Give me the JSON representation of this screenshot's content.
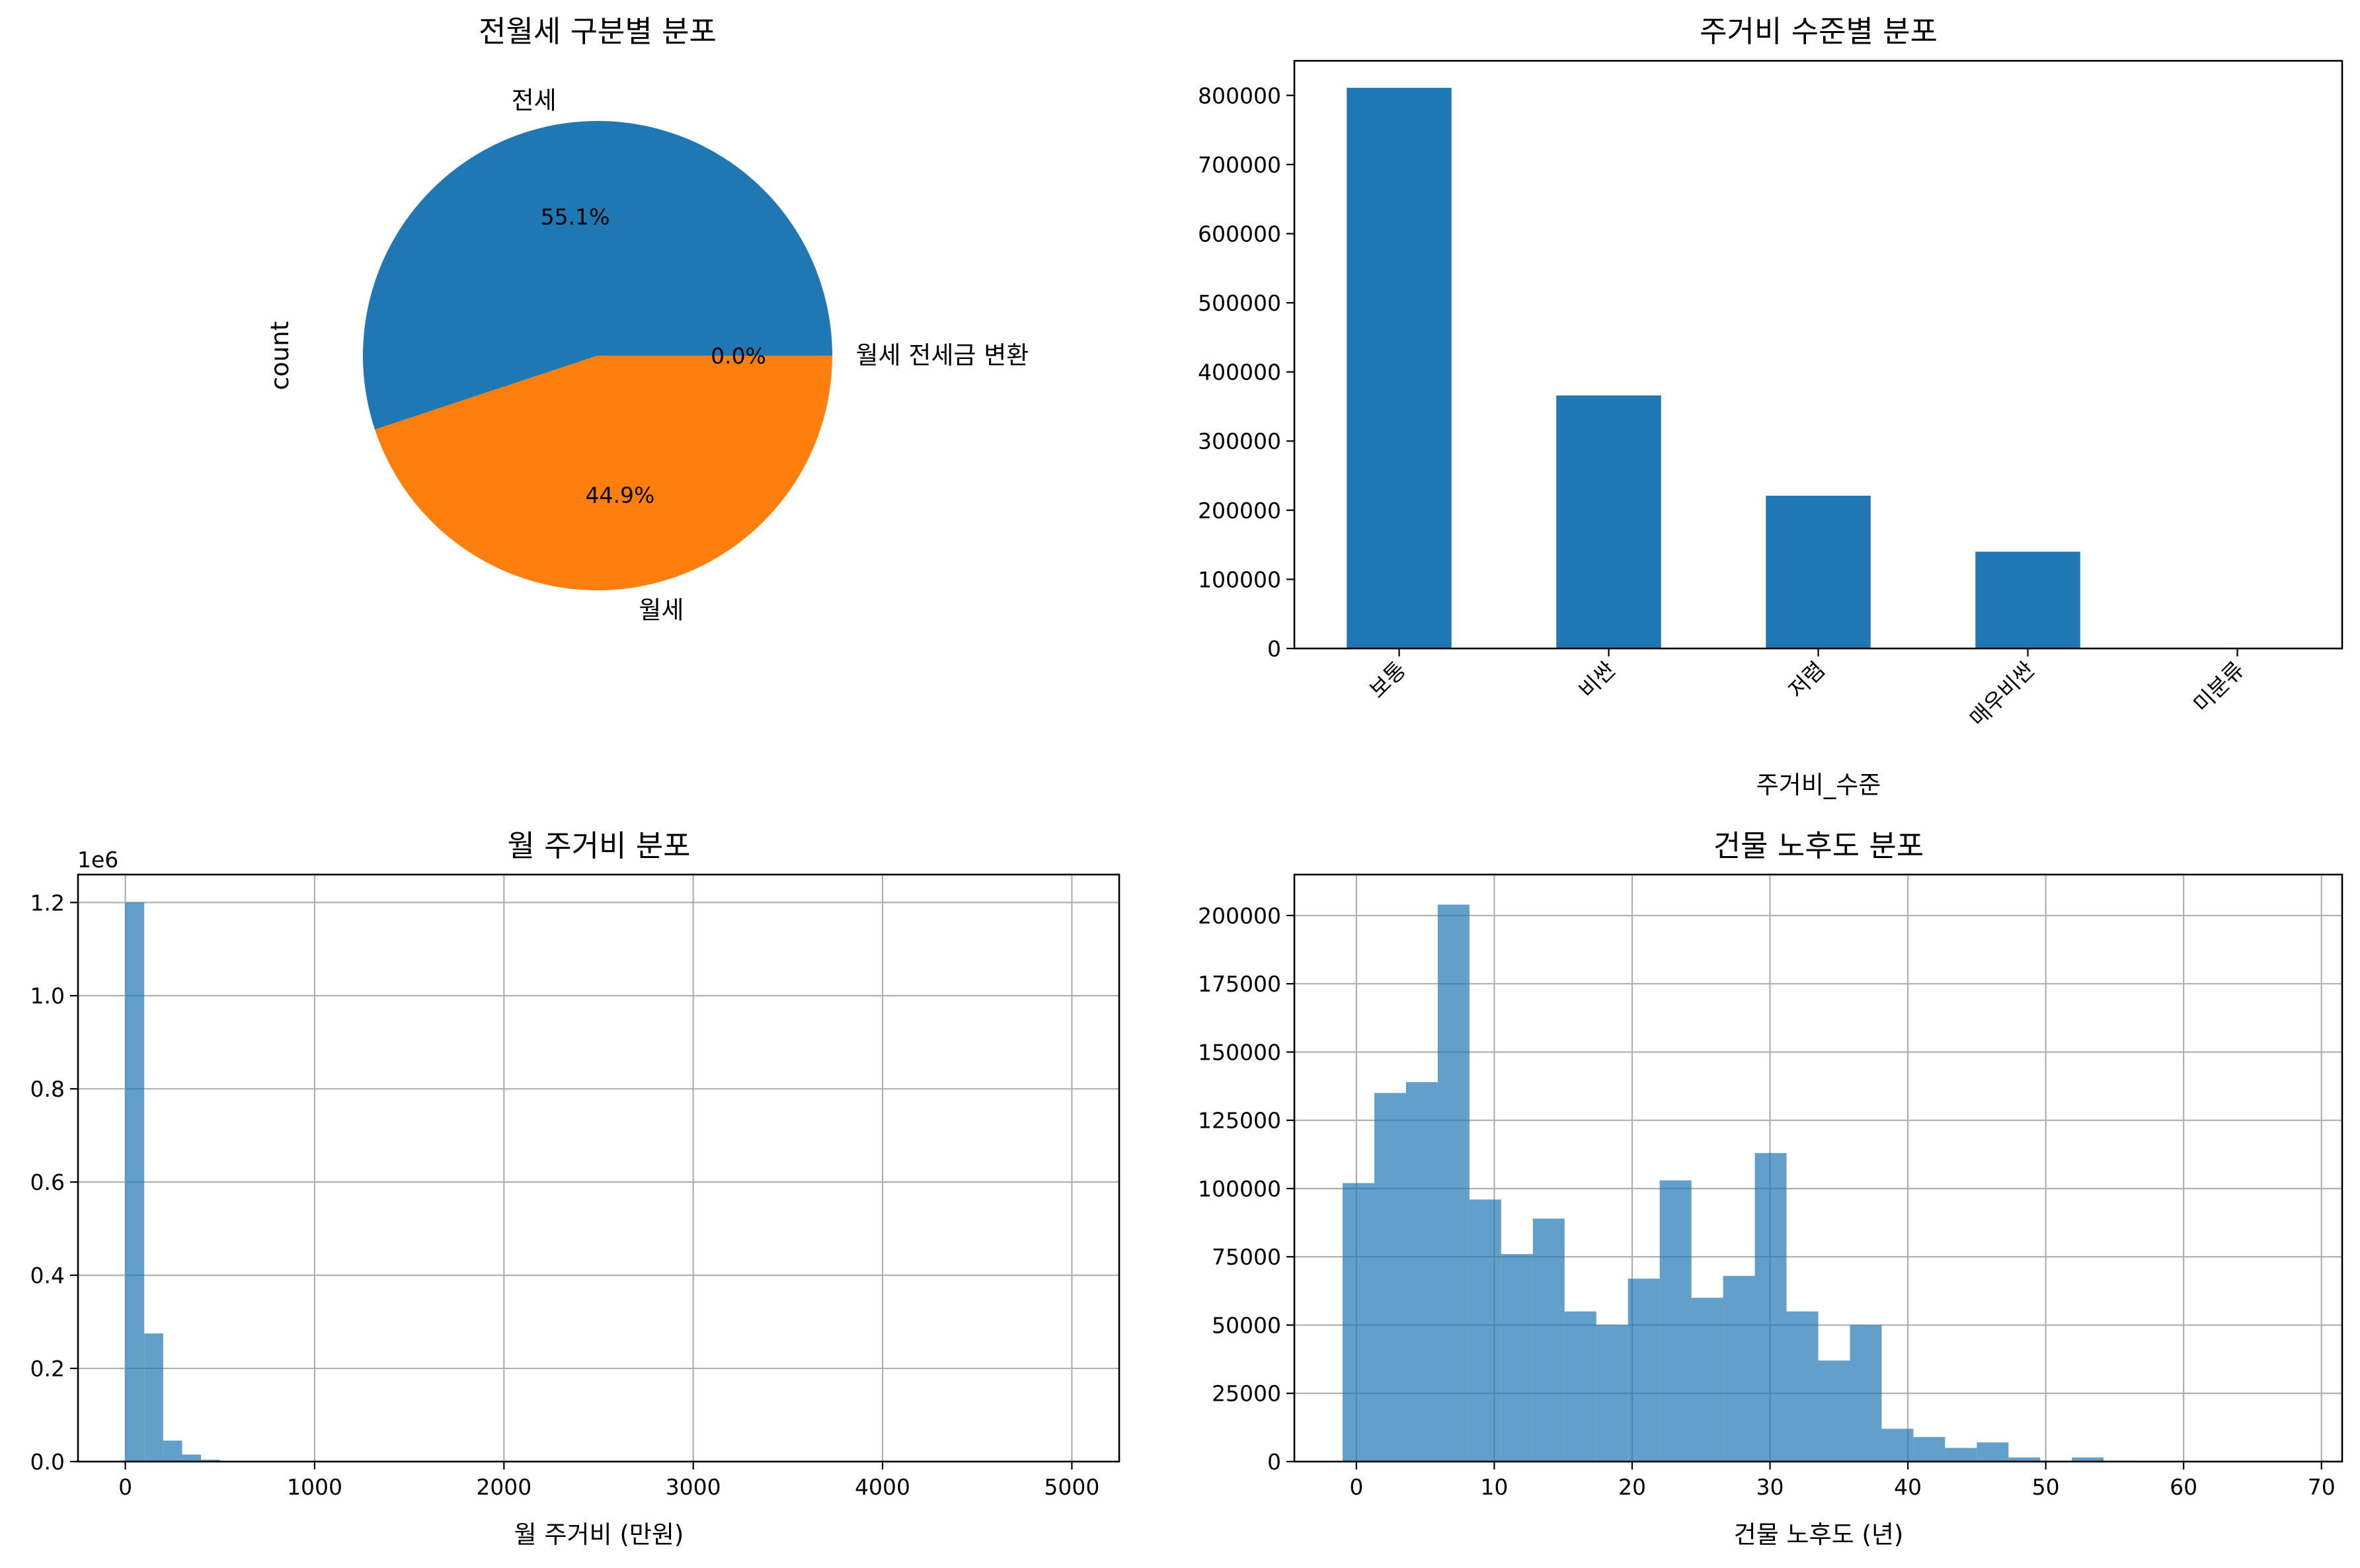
{
  "chart_data": [
    {
      "type": "pie",
      "title": "전월세 구분별 분포",
      "ylabel": "count",
      "slices": [
        {
          "label": "전세",
          "pct_label": "55.1%",
          "value": 55.1
        },
        {
          "label": "월세",
          "pct_label": "44.9%",
          "value": 44.9
        },
        {
          "label": "월세 전세금 변환",
          "pct_label": "0.0%",
          "value": 0.0
        }
      ],
      "colors": [
        "#1f77b4",
        "#ff7f0e",
        "#2ca02c"
      ]
    },
    {
      "type": "bar",
      "title": "주거비 수준별 분포",
      "xlabel": "주거비_수준",
      "ylabel": "",
      "categories": [
        "보통",
        "비싼",
        "저렴",
        "매우비싼",
        "미분류"
      ],
      "values": [
        811000,
        366000,
        221000,
        140000,
        0
      ],
      "ylim": [
        0,
        850000
      ],
      "yticks": [
        0,
        100000,
        200000,
        300000,
        400000,
        500000,
        600000,
        700000,
        800000
      ],
      "color": "#1f77b4",
      "grid": false
    },
    {
      "type": "bar",
      "title": "월 주거비 분포",
      "xlabel": "월 주거비 (만원)",
      "ylabel": "",
      "offset_text": "1e6",
      "bin_width": 100,
      "bin_starts": [
        0,
        100,
        200,
        300,
        400,
        500
      ],
      "values": [
        1.2,
        0.275,
        0.045,
        0.015,
        0.004,
        0.001
      ],
      "xlim": [
        -250,
        5250
      ],
      "ylim": [
        0,
        1.26
      ],
      "xticks": [
        0,
        1000,
        2000,
        3000,
        4000,
        5000
      ],
      "yticks": [
        "0.0",
        "0.2",
        "0.4",
        "0.6",
        "0.8",
        "1.0",
        "1.2"
      ],
      "color": "#1f77b4",
      "alpha": 0.7,
      "grid": true
    },
    {
      "type": "bar",
      "title": "건물 노후도 분포",
      "xlabel": "건물 노후도 (년)",
      "ylabel": "",
      "bin_width": 2.3,
      "bin_starts": [
        -1.0,
        1.3,
        3.6,
        5.9,
        8.2,
        10.5,
        12.8,
        15.1,
        17.4,
        19.7,
        22.0,
        24.3,
        26.6,
        28.9,
        31.2,
        33.5,
        35.8,
        38.1,
        40.4,
        42.7,
        45.0,
        47.3,
        49.6,
        51.9,
        54.2,
        56.5,
        58.8,
        61.1,
        63.4,
        65.7
      ],
      "values": [
        102000,
        135000,
        139000,
        204000,
        96000,
        76000,
        89000,
        55000,
        50000,
        67000,
        103000,
        60000,
        68000,
        113000,
        55000,
        37000,
        50000,
        12000,
        9000,
        5000,
        7000,
        1500,
        300,
        1500,
        300,
        200,
        150,
        100,
        80,
        50
      ],
      "xlim": [
        -4.5,
        71.5
      ],
      "ylim": [
        0,
        215000
      ],
      "xticks": [
        0,
        10,
        20,
        30,
        40,
        50,
        60,
        70
      ],
      "yticks": [
        0,
        25000,
        50000,
        75000,
        100000,
        125000,
        150000,
        175000,
        200000
      ],
      "color": "#1f77b4",
      "alpha": 0.7,
      "grid": true
    }
  ]
}
